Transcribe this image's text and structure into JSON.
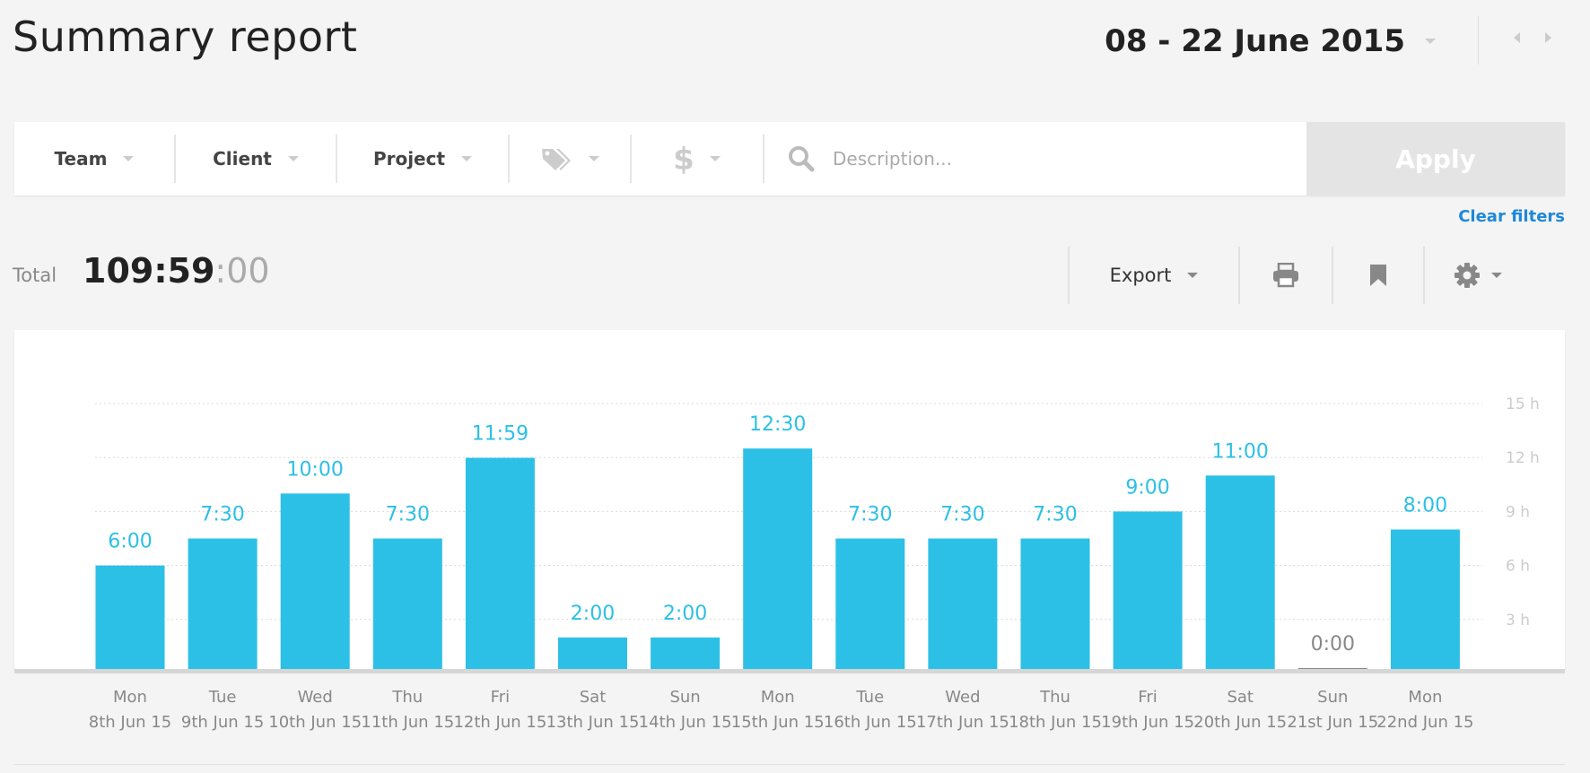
{
  "header": {
    "title": "Summary report",
    "date_range": "08 - 22 June 2015"
  },
  "filters": {
    "team": "Team",
    "client": "Client",
    "project": "Project",
    "tags_icon": "tag-icon",
    "billable_icon": "dollar-icon",
    "search_placeholder": "Description...",
    "apply": "Apply",
    "clear": "Clear filters"
  },
  "total": {
    "label": "Total",
    "main": "109:59",
    "seconds": ":00"
  },
  "toolbar": {
    "export": "Export",
    "print_icon": "print-icon",
    "bookmark_icon": "bookmark-icon",
    "settings_icon": "gear-icon"
  },
  "colors": {
    "bar": "#2cc0e6",
    "zero_bar": "#888888",
    "accent_link": "#1e88d8"
  },
  "chart_data": {
    "type": "bar",
    "categories": [
      [
        "Mon",
        "8th Jun 15"
      ],
      [
        "Tue",
        "9th Jun 15"
      ],
      [
        "Wed",
        "10th Jun 15"
      ],
      [
        "Thu",
        "11th Jun 15"
      ],
      [
        "Fri",
        "12th Jun 15"
      ],
      [
        "Sat",
        "13th Jun 15"
      ],
      [
        "Sun",
        "14th Jun 15"
      ],
      [
        "Mon",
        "15th Jun 15"
      ],
      [
        "Tue",
        "16th Jun 15"
      ],
      [
        "Wed",
        "17th Jun 15"
      ],
      [
        "Thu",
        "18th Jun 15"
      ],
      [
        "Fri",
        "19th Jun 15"
      ],
      [
        "Sat",
        "20th Jun 15"
      ],
      [
        "Sun",
        "21st Jun 15"
      ],
      [
        "Mon",
        "22nd Jun 15"
      ]
    ],
    "values": [
      6.0,
      7.5,
      10.0,
      7.5,
      11.983,
      2.0,
      2.0,
      12.5,
      7.5,
      7.5,
      7.5,
      9.0,
      11.0,
      0.0,
      8.0
    ],
    "value_labels": [
      "6:00",
      "7:30",
      "10:00",
      "7:30",
      "11:59",
      "2:00",
      "2:00",
      "12:30",
      "7:30",
      "7:30",
      "7:30",
      "9:00",
      "11:00",
      "0:00",
      "8:00"
    ],
    "yticks": [
      "3 h",
      "6 h",
      "9 h",
      "12 h",
      "15 h"
    ],
    "ytick_values": [
      3,
      6,
      9,
      12,
      15
    ],
    "ylim": [
      0,
      15
    ],
    "grid": true
  }
}
